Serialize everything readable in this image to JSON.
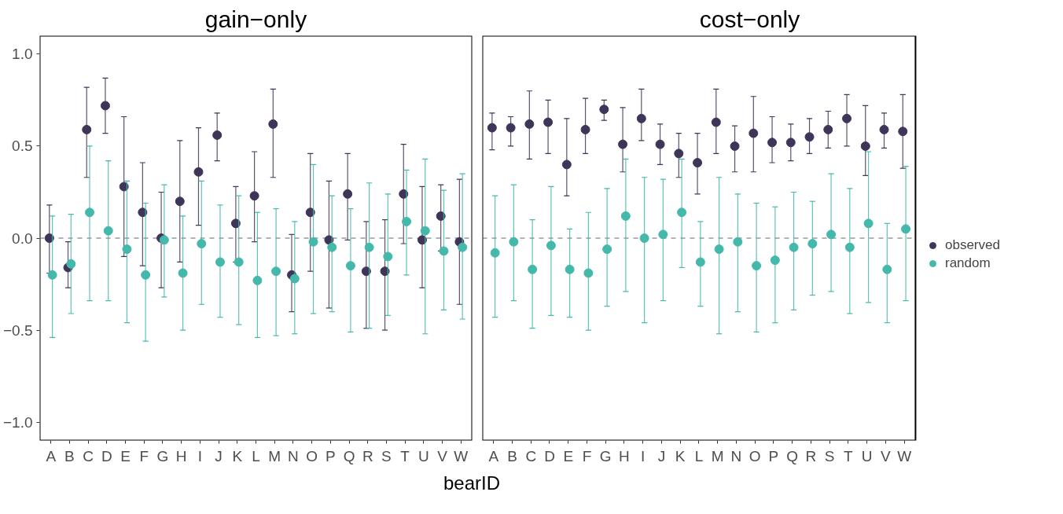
{
  "chart_data": [
    {
      "type": "scatter",
      "title": "gain−only",
      "xlabel": "bearID",
      "categories": [
        "A",
        "B",
        "C",
        "D",
        "E",
        "F",
        "G",
        "H",
        "I",
        "J",
        "K",
        "L",
        "M",
        "N",
        "O",
        "P",
        "Q",
        "R",
        "S",
        "T",
        "U",
        "V",
        "W"
      ],
      "series": [
        {
          "color": "#3f3558",
          "values": [
            0.0,
            -0.16,
            0.59,
            0.72,
            0.28,
            0.14,
            0.0,
            0.2,
            0.36,
            0.56,
            0.08,
            0.23,
            0.62,
            -0.2,
            0.14,
            -0.01,
            0.24,
            -0.18,
            -0.18,
            0.24,
            -0.01,
            0.12,
            -0.02
          ],
          "errors": [
            [
              -0.19,
              0.18
            ],
            [
              -0.27,
              -0.02
            ],
            [
              0.33,
              0.82
            ],
            [
              0.57,
              0.87
            ],
            [
              -0.1,
              0.66
            ],
            [
              -0.15,
              0.41
            ],
            [
              -0.27,
              0.25
            ],
            [
              -0.13,
              0.53
            ],
            [
              0.07,
              0.6
            ],
            [
              0.42,
              0.68
            ],
            [
              -0.13,
              0.28
            ],
            [
              -0.02,
              0.47
            ],
            [
              0.33,
              0.81
            ],
            [
              -0.4,
              0.02
            ],
            [
              -0.18,
              0.46
            ],
            [
              -0.38,
              0.31
            ],
            [
              -0.01,
              0.46
            ],
            [
              -0.49,
              0.09
            ],
            [
              -0.5,
              0.1
            ],
            [
              -0.03,
              0.51
            ],
            [
              -0.27,
              0.28
            ],
            [
              -0.07,
              0.29
            ],
            [
              -0.36,
              0.32
            ]
          ]
        },
        {
          "color": "#45b8ac",
          "values": [
            -0.2,
            -0.14,
            0.14,
            0.04,
            -0.06,
            -0.2,
            -0.01,
            -0.19,
            -0.03,
            -0.13,
            -0.13,
            -0.23,
            -0.18,
            -0.22,
            -0.02,
            -0.05,
            -0.15,
            -0.05,
            -0.1,
            0.09,
            0.04,
            -0.07,
            -0.05
          ],
          "errors": [
            [
              -0.54,
              0.12
            ],
            [
              -0.41,
              0.13
            ],
            [
              -0.34,
              0.5
            ],
            [
              -0.34,
              0.42
            ],
            [
              -0.46,
              0.31
            ],
            [
              -0.56,
              0.19
            ],
            [
              -0.32,
              0.29
            ],
            [
              -0.5,
              0.12
            ],
            [
              -0.36,
              0.31
            ],
            [
              -0.43,
              0.18
            ],
            [
              -0.47,
              0.23
            ],
            [
              -0.54,
              0.14
            ],
            [
              -0.53,
              0.16
            ],
            [
              -0.52,
              0.09
            ],
            [
              -0.41,
              0.4
            ],
            [
              -0.4,
              0.23
            ],
            [
              -0.51,
              0.16
            ],
            [
              -0.49,
              0.3
            ],
            [
              -0.42,
              0.24
            ],
            [
              -0.2,
              0.37
            ],
            [
              -0.52,
              0.43
            ],
            [
              -0.39,
              0.26
            ],
            [
              -0.44,
              0.35
            ]
          ]
        }
      ],
      "ylim": [
        -1.1,
        1.1
      ],
      "yticks": [
        {
          "value": -1.0,
          "label": "−1.0"
        },
        {
          "value": -0.5,
          "label": "−0.5"
        },
        {
          "value": 0,
          "label": "0.0"
        },
        {
          "value": 0.5,
          "label": "0.5"
        },
        {
          "value": 1.0,
          "label": "1.0"
        }
      ],
      "ref_lines": [
        {
          "axis": "y",
          "value": 0,
          "color": "#666666",
          "line_style": "dashed"
        }
      ],
      "marker": "circle",
      "grid": false
    },
    {
      "type": "scatter",
      "title": "cost−only",
      "categories": [
        "A",
        "B",
        "C",
        "D",
        "E",
        "F",
        "G",
        "H",
        "I",
        "J",
        "K",
        "L",
        "M",
        "N",
        "O",
        "P",
        "Q",
        "R",
        "S",
        "T",
        "U",
        "V",
        "W"
      ],
      "series": [
        {
          "name": "observed",
          "color": "#3f3558",
          "values": [
            0.6,
            0.6,
            0.62,
            0.63,
            0.4,
            0.59,
            0.7,
            0.51,
            0.65,
            0.51,
            0.46,
            0.41,
            0.63,
            0.5,
            0.57,
            0.52,
            0.52,
            0.55,
            0.59,
            0.65,
            0.5,
            0.59,
            0.58
          ],
          "errors": [
            [
              0.48,
              0.68
            ],
            [
              0.5,
              0.66
            ],
            [
              0.43,
              0.8
            ],
            [
              0.46,
              0.75
            ],
            [
              0.23,
              0.65
            ],
            [
              0.46,
              0.76
            ],
            [
              0.64,
              0.75
            ],
            [
              0.36,
              0.71
            ],
            [
              0.53,
              0.81
            ],
            [
              0.4,
              0.62
            ],
            [
              0.33,
              0.57
            ],
            [
              0.24,
              0.57
            ],
            [
              0.46,
              0.81
            ],
            [
              0.36,
              0.61
            ],
            [
              0.36,
              0.77
            ],
            [
              0.41,
              0.66
            ],
            [
              0.42,
              0.62
            ],
            [
              0.46,
              0.65
            ],
            [
              0.49,
              0.69
            ],
            [
              0.5,
              0.78
            ],
            [
              0.34,
              0.72
            ],
            [
              0.49,
              0.68
            ],
            [
              0.38,
              0.78
            ]
          ]
        },
        {
          "name": "random",
          "color": "#45b8ac",
          "values": [
            -0.08,
            -0.02,
            -0.17,
            -0.04,
            -0.17,
            -0.19,
            -0.06,
            0.12,
            0.0,
            0.02,
            0.14,
            -0.13,
            -0.06,
            -0.02,
            -0.15,
            -0.12,
            -0.05,
            -0.03,
            0.02,
            -0.05,
            0.08,
            -0.17,
            0.05
          ],
          "errors": [
            [
              -0.43,
              0.23
            ],
            [
              -0.34,
              0.29
            ],
            [
              -0.49,
              0.1
            ],
            [
              -0.42,
              0.28
            ],
            [
              -0.43,
              0.05
            ],
            [
              -0.5,
              0.14
            ],
            [
              -0.37,
              0.27
            ],
            [
              -0.29,
              0.43
            ],
            [
              -0.46,
              0.33
            ],
            [
              -0.34,
              0.32
            ],
            [
              -0.16,
              0.43
            ],
            [
              -0.37,
              0.09
            ],
            [
              -0.52,
              0.33
            ],
            [
              -0.4,
              0.24
            ],
            [
              -0.51,
              0.19
            ],
            [
              -0.46,
              0.17
            ],
            [
              -0.39,
              0.25
            ],
            [
              -0.31,
              0.2
            ],
            [
              -0.29,
              0.35
            ],
            [
              -0.41,
              0.27
            ],
            [
              -0.35,
              0.47
            ],
            [
              -0.46,
              0.08
            ],
            [
              -0.34,
              0.39
            ]
          ]
        }
      ],
      "ylim": [
        -1.1,
        1.1
      ],
      "tick_labels": "x",
      "ref_lines": [
        {
          "axis": "y",
          "value": 0,
          "color": "#666666",
          "line_style": "dashed"
        }
      ],
      "marker": "circle",
      "grid": false,
      "legend": "right"
    }
  ]
}
